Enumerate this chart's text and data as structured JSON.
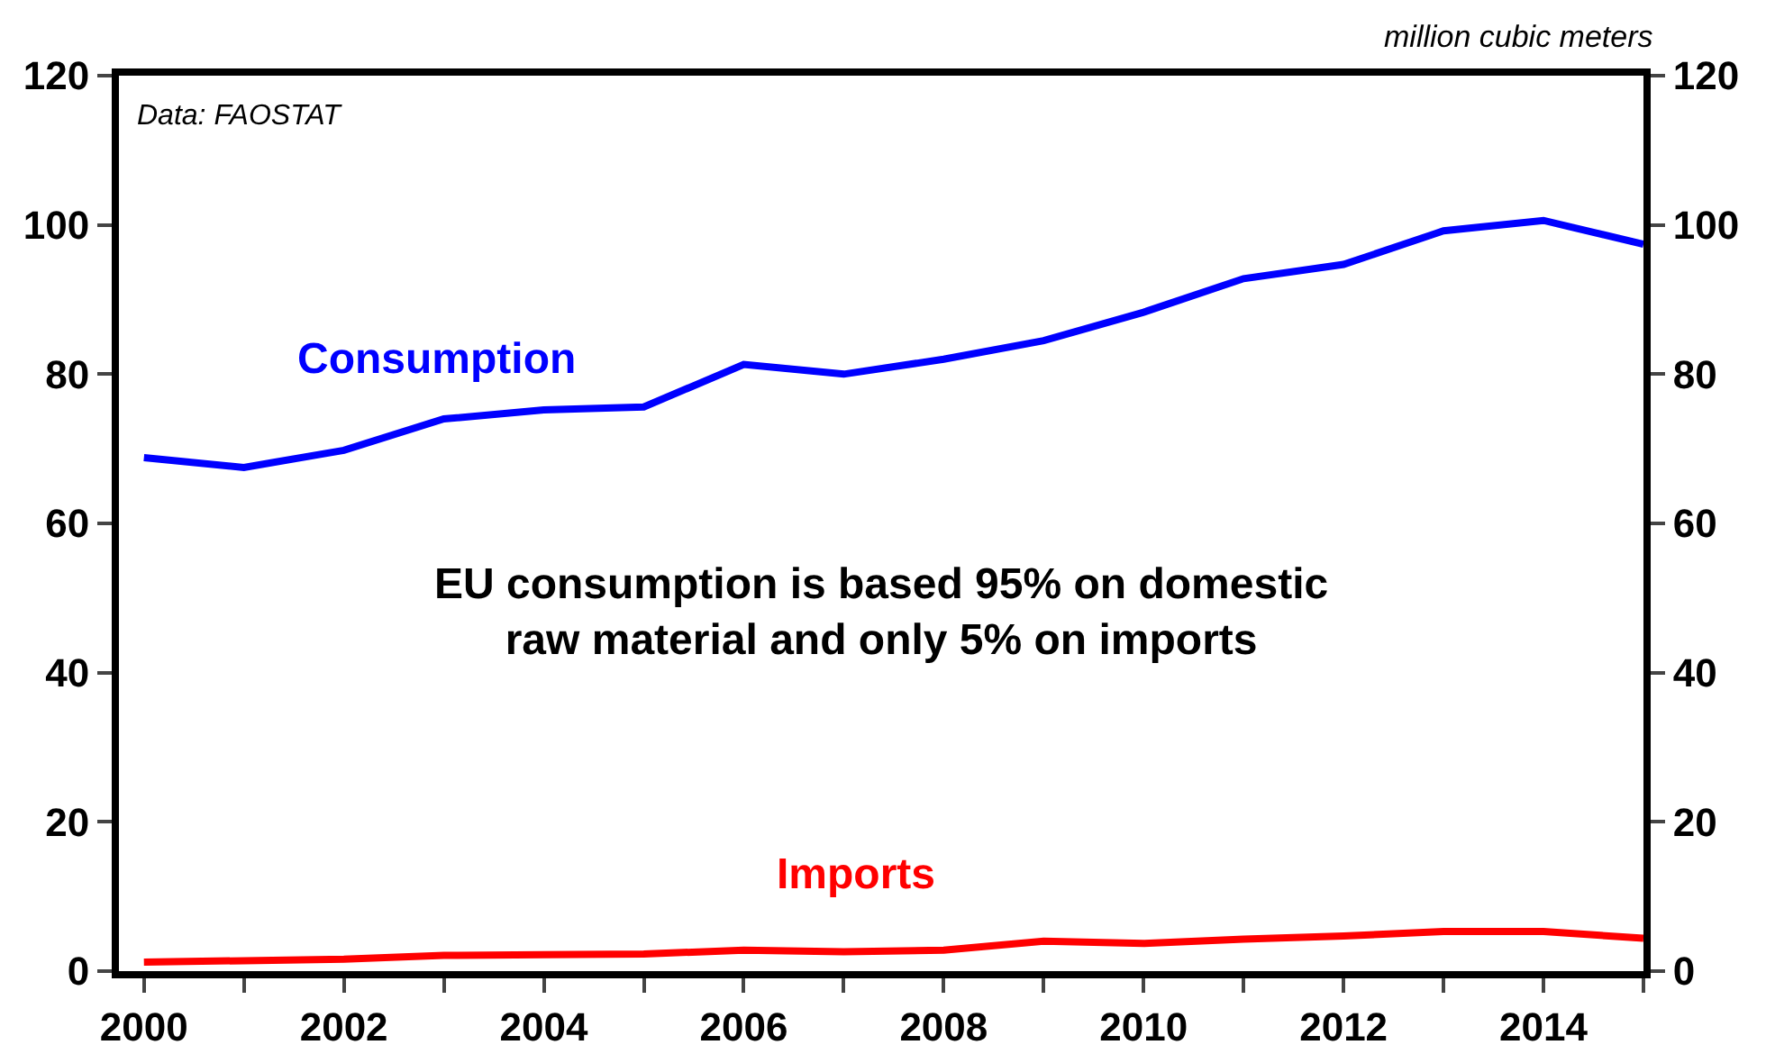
{
  "chart_data": {
    "type": "line",
    "x": [
      2000,
      2001,
      2002,
      2003,
      2004,
      2005,
      2006,
      2007,
      2008,
      2009,
      2010,
      2011,
      2012,
      2013,
      2014,
      2015
    ],
    "series": [
      {
        "name": "Consumption",
        "color": "#0000ff",
        "values": [
          68.8,
          67.5,
          69.8,
          74,
          75.2,
          75.6,
          81.3,
          80,
          82,
          84.5,
          88.3,
          92.8,
          94.7,
          99.2,
          100.6,
          97.4
        ]
      },
      {
        "name": "Imports",
        "color": "#ff0000",
        "values": [
          1.2,
          1.4,
          1.6,
          2.1,
          2.2,
          2.3,
          2.8,
          2.6,
          2.8,
          4.0,
          3.7,
          4.3,
          4.7,
          5.3,
          5.3,
          4.4
        ]
      }
    ],
    "xlim": [
      1999.75,
      2015
    ],
    "xticks": [
      2000,
      {
        "value": 2001,
        "label": null
      },
      2002,
      {
        "value": 2003,
        "label": null
      },
      2004,
      {
        "value": 2005,
        "label": null
      },
      2006,
      {
        "value": 2007,
        "label": null
      },
      2008,
      {
        "value": 2009,
        "label": null
      },
      2010,
      {
        "value": 2011,
        "label": null
      },
      2012,
      {
        "value": 2013,
        "label": null
      },
      2014,
      {
        "value": 2015,
        "label": null
      }
    ],
    "ylim": [
      0,
      120
    ],
    "yticks": [
      0,
      20,
      40,
      60,
      80,
      100,
      120
    ],
    "y2lim": [
      0,
      120
    ],
    "y2ticks": [
      0,
      20,
      40,
      60,
      80,
      100,
      120
    ],
    "y2label": "million cubic meters",
    "annotations": [
      "Data: FAOSTAT",
      "EU consumption is based 95% on domestic\nraw material and only 5% on imports"
    ],
    "grid": false,
    "legend": false,
    "marker": "none",
    "line_style": "solid"
  }
}
